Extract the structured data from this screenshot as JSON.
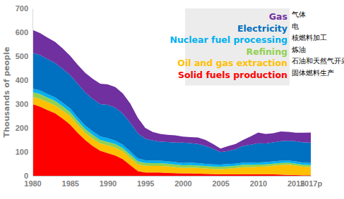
{
  "chart_data": {
    "type": "area",
    "stacked": true,
    "legend": "top-right",
    "y_label": "Thousands of people",
    "x": [
      1980,
      1981,
      1982,
      1983,
      1984,
      1985,
      1986,
      1987,
      1988,
      1989,
      1990,
      1991,
      1992,
      1993,
      1994,
      1995,
      1996,
      1997,
      1998,
      1999,
      2000,
      2001,
      2002,
      2003,
      2004,
      2005,
      2006,
      2007,
      2008,
      2009,
      2010,
      2011,
      2012,
      2013,
      2014,
      2015,
      2016,
      2017
    ],
    "xlim": [
      1980,
      2017
    ],
    "xticks": [
      1980,
      1985,
      1990,
      1995,
      2000,
      2005,
      2010,
      2015,
      {
        "value": 2017,
        "label": "2017p"
      }
    ],
    "ylim": [
      0,
      700
    ],
    "yticks": [
      0,
      100,
      200,
      300,
      400,
      500,
      600,
      700
    ],
    "series": [
      {
        "name": "Solid fuels production",
        "name_zh": "固体燃料生产",
        "color": "#ff0000",
        "values": [
          300,
          290,
          275,
          262,
          240,
          215,
          180,
          150,
          125,
          105,
          95,
          85,
          70,
          45,
          20,
          14,
          14,
          14,
          12,
          11,
          10,
          10,
          9,
          8,
          7,
          6,
          6,
          6,
          6,
          6,
          6,
          6,
          6,
          5,
          4,
          3,
          2,
          2
        ]
      },
      {
        "name": "Oil and gas extraction",
        "name_zh": "石油和天然气开采",
        "color": "#ffc000",
        "values": [
          30,
          32,
          33,
          33,
          33,
          35,
          33,
          30,
          30,
          30,
          32,
          33,
          32,
          30,
          28,
          28,
          27,
          27,
          28,
          25,
          23,
          24,
          24,
          23,
          22,
          22,
          24,
          26,
          30,
          30,
          32,
          33,
          36,
          40,
          42,
          40,
          36,
          35
        ]
      },
      {
        "name": "Refining",
        "name_zh": "炼油",
        "color": "#92d050",
        "values": [
          20,
          20,
          19,
          18,
          18,
          17,
          17,
          16,
          16,
          15,
          15,
          15,
          14,
          14,
          13,
          12,
          12,
          12,
          11,
          11,
          11,
          11,
          10,
          10,
          10,
          10,
          10,
          10,
          10,
          10,
          9,
          9,
          9,
          9,
          9,
          8,
          8,
          8
        ]
      },
      {
        "name": "Nuclear fuel processing",
        "name_zh": "核燃料加工",
        "color": "#00b0f0",
        "values": [
          15,
          15,
          15,
          15,
          15,
          15,
          15,
          15,
          15,
          15,
          15,
          14,
          14,
          13,
          12,
          11,
          10,
          10,
          10,
          10,
          10,
          10,
          10,
          9,
          9,
          9,
          9,
          9,
          9,
          9,
          9,
          9,
          9,
          9,
          9,
          9,
          9,
          9
        ]
      },
      {
        "name": "Electricity",
        "name_zh": "电",
        "color": "#0070c0",
        "values": [
          150,
          148,
          146,
          144,
          142,
          140,
          140,
          138,
          136,
          135,
          140,
          138,
          130,
          120,
          105,
          90,
          85,
          80,
          80,
          82,
          85,
          82,
          80,
          75,
          65,
          52,
          55,
          60,
          70,
          75,
          80,
          78,
          80,
          82,
          82,
          85,
          85,
          85
        ]
      },
      {
        "name": "Gas",
        "name_zh": "气体",
        "color": "#7030a0",
        "values": [
          95,
          92,
          90,
          88,
          85,
          80,
          80,
          82,
          84,
          85,
          85,
          86,
          85,
          80,
          65,
          45,
          35,
          32,
          30,
          30,
          25,
          25,
          27,
          25,
          20,
          15,
          20,
          22,
          25,
          35,
          45,
          40,
          38,
          40,
          38,
          35,
          40,
          42
        ]
      }
    ]
  }
}
